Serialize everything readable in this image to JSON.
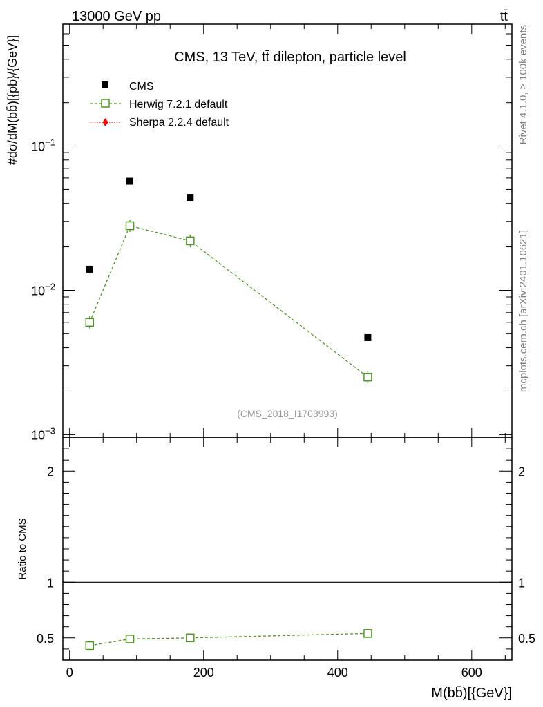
{
  "header": {
    "left": "13000 GeV pp",
    "right": "tt̄"
  },
  "side_text": {
    "rivet": "Rivet 4.1.0, ≥ 100k events",
    "source": "mcplots.cern.ch [arXiv:2401.10621]"
  },
  "colors": {
    "cms": "#000000",
    "herwig": "#4b9a1e",
    "sherpa": "#ff0000",
    "watermark": "#999999"
  },
  "chart_data": [
    {
      "type": "scatter",
      "panel": "main",
      "title": "CMS, 13 TeV, tt̄ dilepton, particle level",
      "analysis_label": "(CMS_2018_I1703993)",
      "ylabel": "#dσ/dM(bb̄)[{pb}/{GeV}]",
      "yscale": "log",
      "ylim": [
        0.00095,
        0.7
      ],
      "xlim": [
        -10,
        660
      ],
      "y_tick_labels": [
        "10^-3",
        "10^-2",
        "10^-1"
      ],
      "x": [
        30,
        90,
        180,
        445
      ],
      "series": [
        {
          "name": "CMS",
          "style": "markers",
          "values": [
            0.014,
            0.057,
            0.044,
            0.0047
          ]
        },
        {
          "name": "Herwig 7.2.1 default",
          "style": "dashed-open-squares",
          "values": [
            0.006,
            0.028,
            0.022,
            0.0025
          ]
        },
        {
          "name": "Sherpa 2.2.4 default",
          "style": "dotted-diamond",
          "values": []
        }
      ],
      "legend": [
        "CMS",
        "Herwig 7.2.1 default",
        "Sherpa 2.2.4 default"
      ],
      "legend_position": "top-left"
    },
    {
      "type": "line",
      "panel": "ratio",
      "ylabel": "Ratio to CMS",
      "xlabel": "M(bb̄)[{GeV}]",
      "ylim": [
        0.3,
        2.3
      ],
      "xlim": [
        -10,
        660
      ],
      "reference_line": 1,
      "x_ticks": [
        0,
        200,
        400,
        600
      ],
      "x_tick_labels": [
        "0",
        "200",
        "400",
        "600"
      ],
      "y_ticks": [
        0.5,
        1,
        2
      ],
      "y_tick_labels": [
        "0.5",
        "1",
        "2"
      ],
      "x": [
        30,
        90,
        180,
        445
      ],
      "series": [
        {
          "name": "Herwig 7.2.1 default",
          "values": [
            0.43,
            0.49,
            0.5,
            0.54
          ],
          "errors": [
            0.04,
            0.03,
            0.02,
            0.035
          ]
        }
      ]
    }
  ]
}
